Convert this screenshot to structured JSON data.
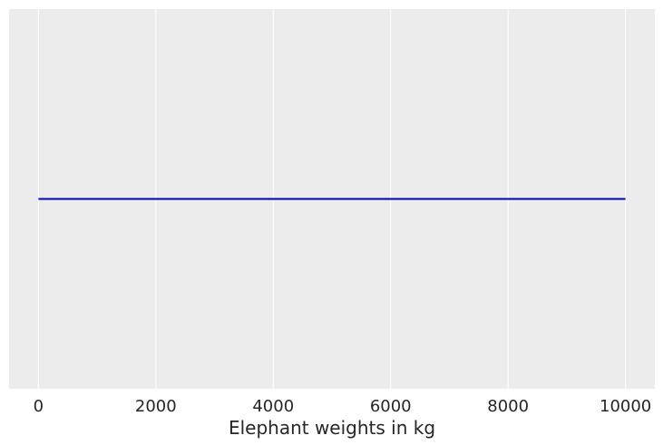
{
  "chart_data": {
    "type": "line",
    "title": "",
    "xlabel": "Elephant weights in kg",
    "ylabel": "",
    "xlim": [
      -500,
      10500
    ],
    "ylim": [
      0,
      1
    ],
    "x_ticks": [
      0,
      2000,
      4000,
      6000,
      8000,
      10000
    ],
    "x_tick_labels": [
      "0",
      "2000",
      "4000",
      "6000",
      "8000",
      "10000"
    ],
    "y_ticks": [],
    "grid": "vertical",
    "series": [
      {
        "x": [
          0,
          10000
        ],
        "y": [
          0.5,
          0.5
        ],
        "color": "#0000bf"
      }
    ]
  },
  "colors": {
    "plot_background": "#ececec",
    "grid": "#ffffff",
    "text": "#262626"
  }
}
